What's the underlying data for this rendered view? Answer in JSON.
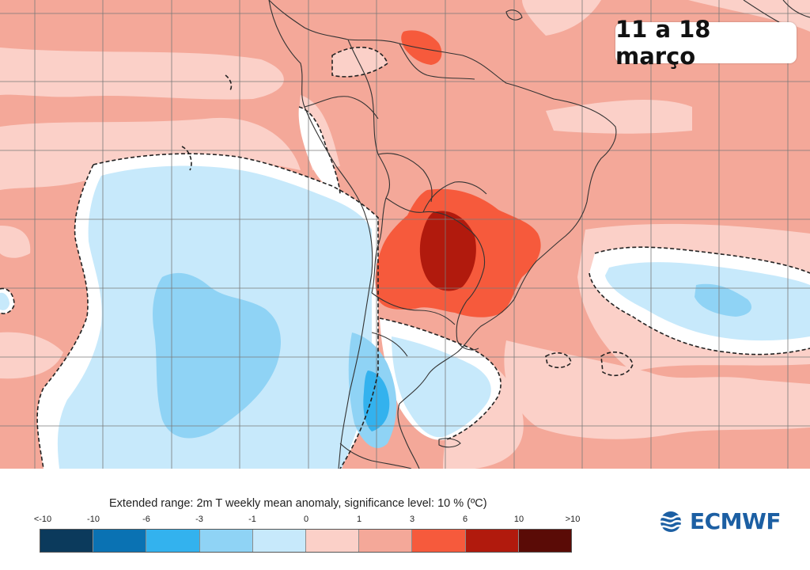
{
  "map": {
    "period_label": "11 a 18 março",
    "region": "South America",
    "colors": {
      "lt_minus_10": "#0b3a5c",
      "minus_10_to_minus_6": "#0a72b3",
      "minus_6_to_minus_3": "#33b2ee",
      "minus_3_to_minus_1": "#8fd3f5",
      "minus_1_to_0": "#c7e9fb",
      "zero_to_1": "#fbd0c8",
      "one_to_3": "#f4a899",
      "three_to_6": "#f65a3c",
      "six_to_10": "#b11a0d",
      "gt_10": "#5a0b06",
      "land_border": "#333333",
      "significance_contour": "#222222",
      "grid": "#7a7a7a"
    }
  },
  "legend": {
    "title": "Extended range: 2m T weekly mean anomaly, significance level: 10 % (ºC)",
    "unit": "ºC",
    "ticks": [
      "<-10",
      "-10",
      "-6",
      "-3",
      "-1",
      "0",
      "1",
      "3",
      "6",
      "10",
      ">10"
    ],
    "swatches": [
      "#0b3a5c",
      "#0a72b3",
      "#33b2ee",
      "#8fd3f5",
      "#c7e9fb",
      "#fbd0c8",
      "#f4a899",
      "#f65a3c",
      "#b11a0d",
      "#5a0b06"
    ]
  },
  "branding": {
    "logo_text": "ECMWF",
    "logo_color": "#1c5fa3",
    "logo_icon": "ecmwf-wave-icon"
  }
}
